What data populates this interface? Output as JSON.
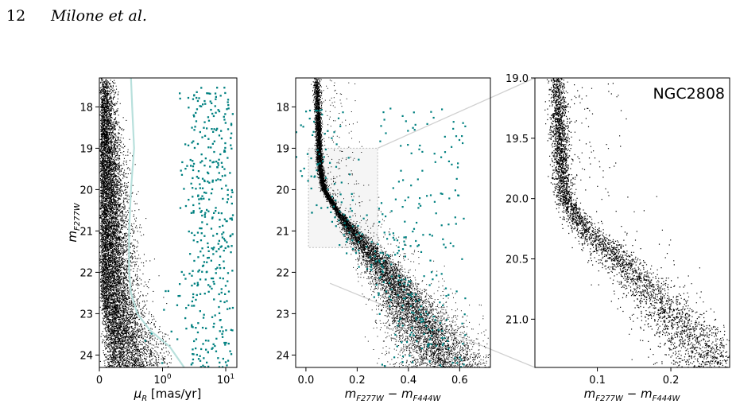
{
  "page": {
    "number": "12",
    "running_head": "Milone et al."
  },
  "colors": {
    "background": "#ffffff",
    "cluster_stars": "#000000",
    "field_stars": "#008080",
    "separation_line": "#b8e0dc",
    "inset_box": "#d8d8d8",
    "zoom_lines": "#d0d0d0"
  },
  "chart_data": [
    {
      "type": "scatter",
      "panel": "left",
      "xlabel": "μ_R [mas/yr]",
      "ylabel": "m_F277W",
      "x_scale": "symlog",
      "xlim": [
        0,
        15
      ],
      "ylim": [
        24.3,
        17.3
      ],
      "y_ticks": [
        "18",
        "19",
        "20",
        "21",
        "22",
        "23",
        "24"
      ],
      "x_ticks": [
        "0",
        "10^0",
        "10^1"
      ],
      "separation_line": {
        "x": [
          0.5,
          0.52,
          0.55,
          0.5,
          0.47,
          0.47,
          0.5,
          0.6,
          0.8,
          1.3,
          2.2
        ],
        "y": [
          17.3,
          18.0,
          19.0,
          20.0,
          21.0,
          22.0,
          22.5,
          23.0,
          23.4,
          23.8,
          24.3
        ]
      },
      "series": [
        {
          "group": "cluster_stars",
          "count": 9000,
          "x_range": [
            0,
            1.5
          ],
          "y_range": [
            17.3,
            24.3
          ]
        },
        {
          "group": "field_stars",
          "count": 420,
          "x_range": [
            0.5,
            14
          ],
          "y_range": [
            17.5,
            24.3
          ]
        }
      ]
    },
    {
      "type": "scatter",
      "panel": "middle",
      "xlabel": "m_F277W − m_F444W",
      "ylabel": "",
      "xlim": [
        -0.04,
        0.72
      ],
      "ylim": [
        24.3,
        17.3
      ],
      "y_ticks": [
        "18",
        "19",
        "20",
        "21",
        "22",
        "23",
        "24"
      ],
      "x_ticks": [
        "0.0",
        "0.2",
        "0.4",
        "0.6"
      ],
      "inset_box": {
        "x": [
          0.01,
          0.28
        ],
        "y": [
          19.0,
          21.4
        ]
      },
      "ridge_line": {
        "y": [
          17.3,
          18.0,
          19.0,
          19.5,
          20.0,
          20.5,
          21.0,
          21.5,
          22.0,
          22.5,
          23.0,
          23.5,
          24.0,
          24.3
        ],
        "x": [
          0.04,
          0.045,
          0.05,
          0.055,
          0.07,
          0.12,
          0.18,
          0.25,
          0.31,
          0.37,
          0.42,
          0.47,
          0.52,
          0.55
        ]
      },
      "series": [
        {
          "group": "cluster_stars",
          "count": 10000
        },
        {
          "group": "field_stars",
          "count": 360
        }
      ]
    },
    {
      "type": "scatter",
      "panel": "right",
      "title": "NGC2808",
      "xlabel": "m_F277W − m_F444W",
      "ylabel": "",
      "xlim": [
        0.015,
        0.28
      ],
      "ylim": [
        21.4,
        19.0
      ],
      "y_ticks": [
        "19.0",
        "19.5",
        "20.0",
        "20.5",
        "21.0"
      ],
      "x_ticks": [
        "0.1",
        "0.2"
      ],
      "ridge_line": {
        "y": [
          19.0,
          19.5,
          20.0,
          20.2,
          20.4,
          20.6,
          20.8,
          21.0,
          21.2,
          21.4
        ],
        "x": [
          0.045,
          0.048,
          0.055,
          0.075,
          0.11,
          0.145,
          0.175,
          0.205,
          0.235,
          0.26
        ]
      },
      "series": [
        {
          "group": "cluster_stars",
          "count": 4200
        }
      ]
    }
  ]
}
